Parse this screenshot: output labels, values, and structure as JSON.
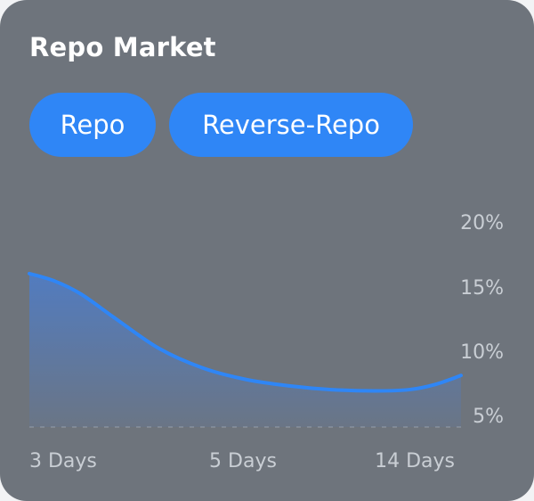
{
  "card": {
    "title": "Repo Market"
  },
  "tabs": [
    {
      "label": "Repo"
    },
    {
      "label": "Reverse-Repo"
    }
  ],
  "colors": {
    "card_bg": "#6e747c",
    "accent": "#2f86f6",
    "label": "#c9ced4"
  },
  "chart_data": {
    "type": "area",
    "x_ticks": [
      "3 Days",
      "5 Days",
      "14 Days"
    ],
    "y_ticks": [
      "20%",
      "15%",
      "10%",
      "5%"
    ],
    "ylim": [
      5,
      20
    ],
    "series": [
      {
        "points": [
          [
            0.0,
            16.0
          ],
          [
            0.06,
            15.4
          ],
          [
            0.12,
            14.4
          ],
          [
            0.2,
            12.5
          ],
          [
            0.3,
            10.2
          ],
          [
            0.4,
            8.7
          ],
          [
            0.5,
            7.8
          ],
          [
            0.6,
            7.3
          ],
          [
            0.7,
            7.0
          ],
          [
            0.8,
            6.9
          ],
          [
            0.88,
            7.0
          ],
          [
            0.94,
            7.4
          ],
          [
            1.0,
            8.1
          ]
        ]
      }
    ]
  }
}
